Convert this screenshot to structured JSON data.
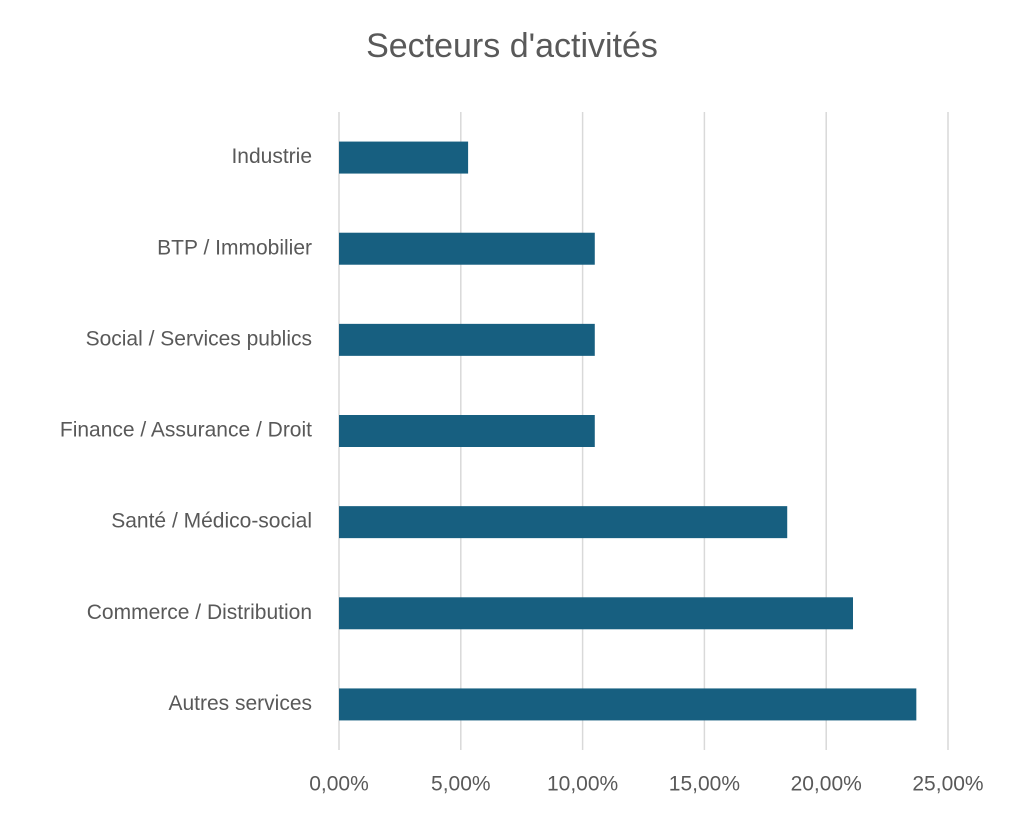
{
  "chart_data": {
    "type": "bar",
    "orientation": "horizontal",
    "title": "Secteurs d'activités",
    "categories": [
      "Industrie",
      "BTP / Immobilier",
      "Social / Services publics",
      "Finance / Assurance / Droit",
      "Santé / Médico-social",
      "Commerce / Distribution",
      "Autres services"
    ],
    "values": [
      5.3,
      10.5,
      10.5,
      10.5,
      18.4,
      21.1,
      23.7
    ],
    "color": "#175f80",
    "xlim": [
      0,
      25
    ],
    "xticks": [
      {
        "value": 0,
        "label": "0,00%"
      },
      {
        "value": 5,
        "label": "5,00%"
      },
      {
        "value": 10,
        "label": "10,00%"
      },
      {
        "value": 15,
        "label": "15,00%"
      },
      {
        "value": 20,
        "label": "20,00%"
      },
      {
        "value": 25,
        "label": "25,00%"
      }
    ],
    "grid": true
  }
}
